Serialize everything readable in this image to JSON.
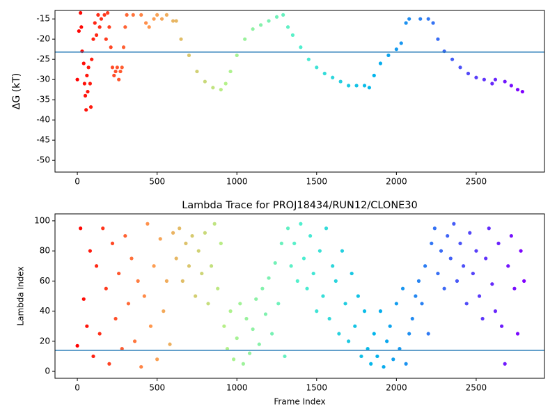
{
  "chart_data": [
    {
      "type": "scatter",
      "ylabel": "ΔG (kT)",
      "x": [
        0,
        10,
        20,
        25,
        30,
        40,
        45,
        50,
        55,
        60,
        65,
        70,
        80,
        85,
        90,
        100,
        110,
        120,
        130,
        140,
        150,
        170,
        180,
        190,
        200,
        210,
        220,
        230,
        240,
        250,
        260,
        270,
        280,
        290,
        300,
        310,
        350,
        400,
        430,
        450,
        480,
        500,
        530,
        560,
        600,
        620,
        650,
        700,
        750,
        800,
        850,
        900,
        930,
        960,
        1000,
        1050,
        1100,
        1150,
        1200,
        1250,
        1290,
        1320,
        1350,
        1400,
        1450,
        1500,
        1550,
        1600,
        1650,
        1700,
        1750,
        1800,
        1830,
        1860,
        1900,
        1950,
        2000,
        2030,
        2060,
        2080,
        2150,
        2200,
        2230,
        2260,
        2300,
        2350,
        2400,
        2450,
        2500,
        2550,
        2600,
        2620,
        2680,
        2720,
        2760,
        2790
      ],
      "values": [
        -30,
        -18,
        -13.5,
        -17,
        -23,
        -26,
        -31,
        -34,
        -37.5,
        -29,
        -33,
        -27,
        -31,
        -36.8,
        -25,
        -20,
        -16,
        -19,
        -14,
        -17,
        -15,
        -14,
        -20,
        -13.5,
        -17,
        -22,
        -27,
        -29,
        -28,
        -27,
        -30,
        -28,
        -27,
        -22,
        -17,
        -14,
        -14,
        -14,
        -16,
        -17,
        -15,
        -14,
        -15,
        -14,
        -15.5,
        -15.5,
        -20,
        -24,
        -28,
        -30.5,
        -32,
        -32.5,
        -31,
        -28,
        -24,
        -20,
        -17.5,
        -16.5,
        -15.5,
        -14.5,
        -14,
        -17,
        -19,
        -22,
        -25,
        -27,
        -28.5,
        -29.5,
        -30.5,
        -31.5,
        -31.5,
        -31.5,
        -32,
        -29,
        -26,
        -24,
        -22.5,
        -21,
        -16,
        -15,
        -15,
        -15,
        -16,
        -20,
        -23,
        -25,
        -27,
        -28.5,
        -29.5,
        -30,
        -31,
        -30,
        -30.5,
        -31.5,
        -32.5,
        -33
      ],
      "colormap": [
        "#ff0000",
        "#ff9a50",
        "#b4f28a",
        "#50f0cf",
        "#00b4ec",
        "#4262f6",
        "#8000ff"
      ],
      "hline": -23.2,
      "hline_color": "#1f77b4",
      "xlim": [
        -140,
        2928
      ],
      "xticks": [
        0,
        500,
        1000,
        1500,
        2000,
        2500
      ],
      "ylim": [
        -52.9,
        -12.9
      ],
      "yticks": [
        -50,
        -45,
        -40,
        -35,
        -30,
        -25,
        -20,
        -15
      ]
    },
    {
      "type": "scatter",
      "title": "Lambda Trace for PROJ18434/RUN12/CLONE30",
      "xlabel": "Frame Index",
      "ylabel": "Lambda Index",
      "x": [
        0,
        20,
        40,
        60,
        80,
        100,
        120,
        140,
        160,
        180,
        200,
        220,
        240,
        260,
        280,
        300,
        320,
        340,
        360,
        380,
        400,
        420,
        440,
        460,
        480,
        500,
        520,
        540,
        560,
        580,
        600,
        620,
        640,
        660,
        680,
        700,
        720,
        740,
        760,
        780,
        800,
        820,
        840,
        860,
        880,
        900,
        920,
        940,
        960,
        980,
        1000,
        1020,
        1040,
        1060,
        1080,
        1100,
        1120,
        1140,
        1160,
        1180,
        1200,
        1220,
        1240,
        1260,
        1280,
        1300,
        1320,
        1340,
        1360,
        1380,
        1400,
        1420,
        1440,
        1460,
        1480,
        1500,
        1520,
        1540,
        1560,
        1580,
        1600,
        1620,
        1640,
        1660,
        1680,
        1700,
        1720,
        1740,
        1760,
        1780,
        1800,
        1820,
        1840,
        1860,
        1880,
        1900,
        1920,
        1940,
        1960,
        1980,
        2000,
        2020,
        2040,
        2060,
        2080,
        2100,
        2120,
        2140,
        2160,
        2180,
        2200,
        2220,
        2240,
        2260,
        2280,
        2300,
        2320,
        2340,
        2360,
        2380,
        2400,
        2420,
        2440,
        2460,
        2480,
        2500,
        2520,
        2540,
        2560,
        2580,
        2600,
        2620,
        2640,
        2660,
        2680,
        2700,
        2720,
        2740,
        2760,
        2780,
        2800
      ],
      "values": [
        17,
        95,
        48,
        30,
        80,
        10,
        70,
        25,
        95,
        55,
        5,
        85,
        35,
        65,
        15,
        90,
        45,
        75,
        20,
        60,
        3,
        50,
        98,
        30,
        70,
        8,
        88,
        40,
        60,
        18,
        92,
        75,
        95,
        60,
        85,
        70,
        90,
        50,
        80,
        65,
        92,
        45,
        70,
        98,
        55,
        85,
        30,
        15,
        40,
        8,
        22,
        45,
        5,
        35,
        12,
        28,
        48,
        18,
        55,
        38,
        62,
        25,
        72,
        45,
        85,
        10,
        95,
        70,
        85,
        60,
        98,
        75,
        55,
        90,
        65,
        40,
        80,
        50,
        95,
        35,
        70,
        60,
        25,
        80,
        45,
        20,
        65,
        30,
        50,
        10,
        40,
        15,
        5,
        25,
        10,
        40,
        3,
        20,
        30,
        8,
        45,
        15,
        55,
        5,
        25,
        35,
        50,
        60,
        45,
        70,
        25,
        85,
        95,
        65,
        80,
        55,
        90,
        75,
        98,
        60,
        85,
        70,
        45,
        92,
        65,
        80,
        50,
        35,
        75,
        95,
        58,
        40,
        85,
        30,
        5,
        70,
        90,
        55,
        25,
        80,
        60
      ],
      "colormap": [
        "#ff0000",
        "#ff9a50",
        "#b4f28a",
        "#50f0cf",
        "#00b4ec",
        "#4262f6",
        "#8000ff"
      ],
      "hline": 14,
      "hline_color": "#1f77b4",
      "xlim": [
        -140,
        2928
      ],
      "xticks": [
        0,
        500,
        1000,
        1500,
        2000,
        2500
      ],
      "ylim": [
        -4.6,
        104.6
      ],
      "yticks": [
        0,
        20,
        40,
        60,
        80,
        100
      ]
    }
  ]
}
